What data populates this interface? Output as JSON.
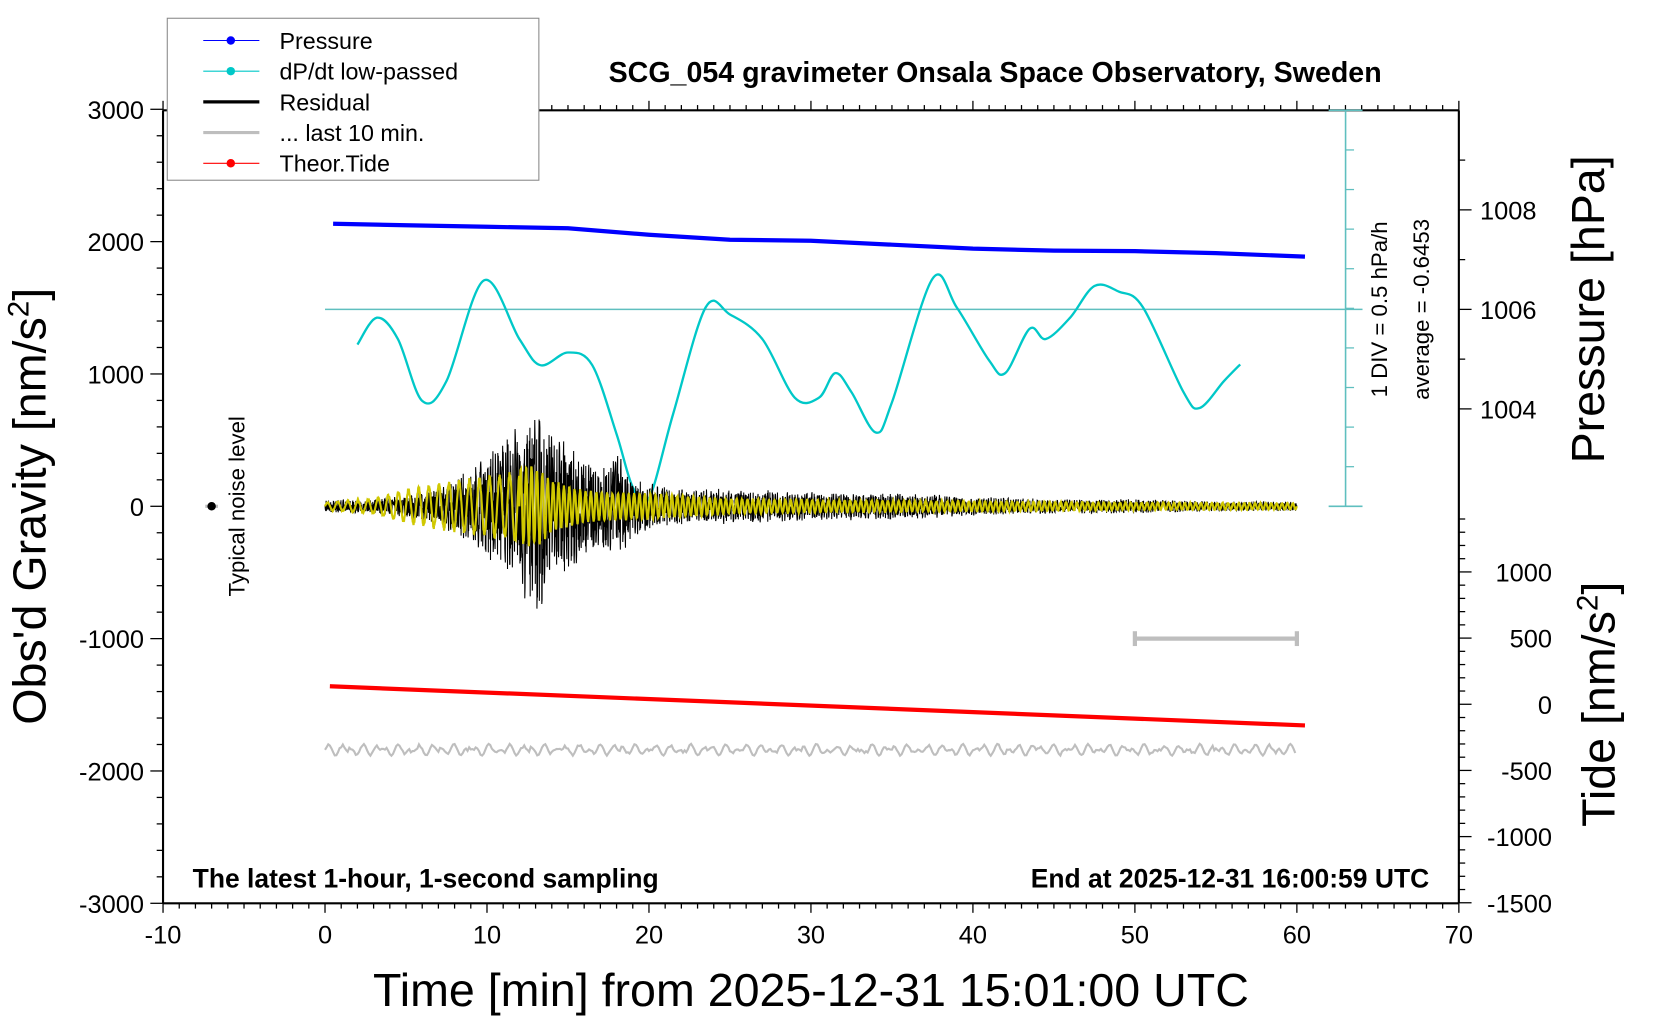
{
  "chart_data": {
    "type": "line",
    "title": "SCG_054 gravimeter Onsala Space Observatory, Sweden",
    "xlabel": "Time [min] from 2025-12-31 15:01:00 UTC",
    "ylabel_left": "Obs'd Gravity [nm/s2]",
    "ylabel_right_pressure": "Pressure [hPa]",
    "ylabel_right_tide": "Tide [nm/s2]",
    "xlim": [
      -10,
      70
    ],
    "ylim_gravity": [
      -3000,
      3000
    ],
    "x_ticks": [
      "-10",
      "0",
      "10",
      "20",
      "30",
      "40",
      "50",
      "60",
      "70"
    ],
    "y_ticks_gravity": [
      "3000",
      "2000",
      "1000",
      "0",
      "-1000",
      "-2000",
      "-3000"
    ],
    "y_ticks_pressure": [
      "1008",
      "1006",
      "1004"
    ],
    "y_ticks_tide": [
      "1000",
      "500",
      "0",
      "-500",
      "-1000",
      "-1500"
    ],
    "legend": {
      "placement": "top-left",
      "entries": [
        {
          "label": "Pressure",
          "color": "#0000ff"
        },
        {
          "label": "dP/dt low-passed",
          "color": "#00c8c8"
        },
        {
          "label": "Residual",
          "color": "#000000"
        },
        {
          "label": "... last 10 min.",
          "color": "#bebebe"
        },
        {
          "label": "Theor.Tide",
          "color": "#ff0000"
        }
      ]
    },
    "annotations": {
      "dpdt_scale": "1 DIV = 0.5 hPa/h",
      "dpdt_average": "average = -0.6453",
      "noise": "Typical noise level",
      "bottom_left": "The latest 1-hour, 1-second sampling",
      "bottom_right": "End at 2025-12-31 16:00:59 UTC"
    },
    "pressure_hpa": {
      "x": [
        0.5,
        5,
        10,
        15,
        20,
        25,
        30,
        35,
        40,
        45,
        50,
        55,
        60.5
      ],
      "y": [
        1007.72,
        1007.69,
        1007.66,
        1007.63,
        1007.5,
        1007.4,
        1007.38,
        1007.3,
        1007.22,
        1007.18,
        1007.17,
        1007.13,
        1007.06
      ]
    },
    "dpdt_hpa_per_h": {
      "average": -0.6453,
      "x": [
        2,
        3.2,
        4.5,
        6,
        7.5,
        9.8,
        12,
        13.3,
        15,
        16.5,
        18,
        19,
        20,
        21.5,
        23.5,
        25,
        27,
        29,
        30.5,
        31.5,
        32.5,
        34,
        35,
        37.5,
        39,
        41,
        42,
        43.5,
        44.5,
        46,
        47.5,
        49,
        50.5,
        53,
        54,
        55.5,
        56.5
      ],
      "y": [
        -1.09,
        -0.75,
        -1.02,
        -1.8,
        -1.55,
        -0.28,
        -1.02,
        -1.35,
        -1.19,
        -1.35,
        -2.22,
        -2.89,
        -3.03,
        -1.96,
        -0.62,
        -0.71,
        -1.02,
        -1.76,
        -1.76,
        -1.45,
        -1.69,
        -2.2,
        -1.82,
        -0.26,
        -0.62,
        -1.29,
        -1.45,
        -0.89,
        -1.02,
        -0.75,
        -0.35,
        -0.42,
        -0.62,
        -1.69,
        -1.89,
        -1.55,
        -1.34
      ]
    },
    "residual_envelope_nm_s2": {
      "x": [
        0,
        3,
        5,
        7,
        8,
        9,
        10,
        11,
        12,
        13,
        14,
        15,
        16,
        17,
        18,
        19,
        20,
        22,
        25,
        30,
        35,
        40,
        45,
        50,
        55,
        60
      ],
      "y": [
        50,
        60,
        100,
        150,
        250,
        300,
        450,
        550,
        700,
        950,
        650,
        550,
        450,
        350,
        500,
        250,
        200,
        150,
        150,
        120,
        120,
        80,
        60,
        60,
        40,
        40
      ]
    },
    "filtered_envelope_nm_s2": {
      "x": [
        0,
        3,
        5,
        7,
        9,
        11,
        12,
        13,
        14,
        16,
        20,
        25,
        30,
        40,
        50,
        60
      ],
      "y": [
        30,
        60,
        130,
        180,
        220,
        250,
        300,
        320,
        200,
        120,
        100,
        60,
        50,
        40,
        30,
        25
      ]
    },
    "last_10_min_level_nm_s2": -1840,
    "last_10_min_bar": {
      "x": [
        50,
        60
      ],
      "y": -1000
    },
    "noise_level": {
      "x": -7,
      "y": 0
    },
    "tide_nm_s2": {
      "x": [
        0.3,
        60.5
      ],
      "y": [
        136,
        -160
      ]
    },
    "grid": false
  }
}
